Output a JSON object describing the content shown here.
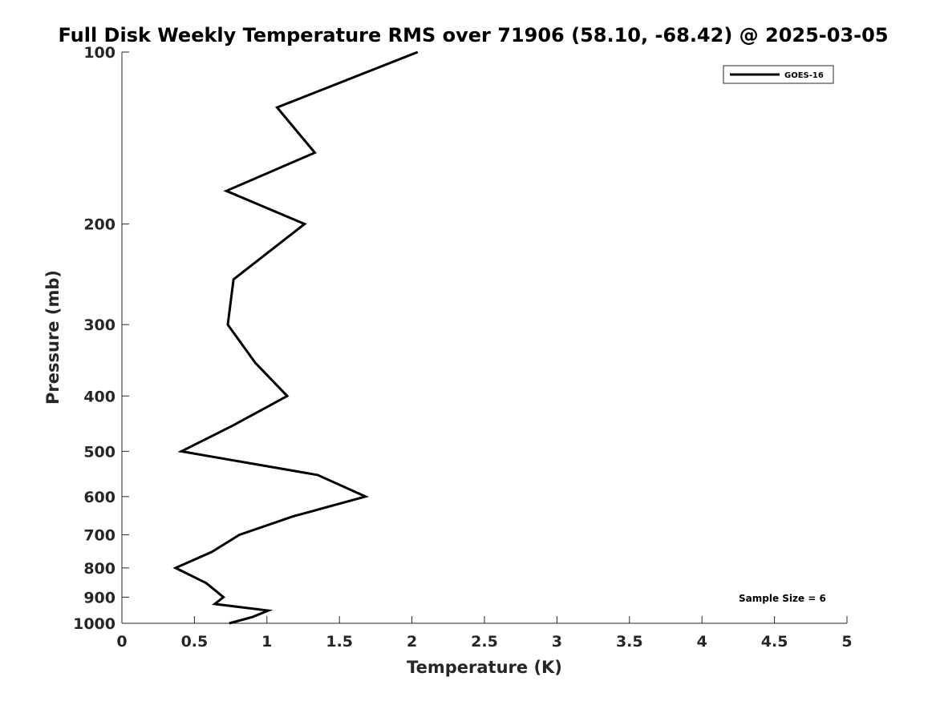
{
  "chart_data": {
    "type": "line",
    "title": "Full Disk Weekly Temperature RMS over 71906 (58.10, -68.42) @ 2025-03-05",
    "xlabel": "Temperature (K)",
    "ylabel": "Pressure (mb)",
    "xlim": [
      0,
      5
    ],
    "ylim": [
      100,
      1000
    ],
    "y_scale": "log",
    "y_direction": "reversed",
    "x_ticks": [
      "0",
      "0.5",
      "1",
      "1.5",
      "2",
      "2.5",
      "3",
      "3.5",
      "4",
      "4.5",
      "5"
    ],
    "y_ticks": [
      "100",
      "200",
      "300",
      "400",
      "500",
      "600",
      "700",
      "800",
      "900",
      "1000"
    ],
    "grid": false,
    "legend": {
      "placement": "top-right",
      "entries": [
        "GOES-16"
      ]
    },
    "annotation": "Sample Size = 6",
    "colors": {
      "series": "#000000",
      "axis": "#262626"
    },
    "series": [
      {
        "name": "GOES-16",
        "points": [
          {
            "temperature": 2.04,
            "pressure": 100
          },
          {
            "temperature": 1.07,
            "pressure": 125
          },
          {
            "temperature": 1.33,
            "pressure": 150
          },
          {
            "temperature": 0.72,
            "pressure": 175
          },
          {
            "temperature": 1.26,
            "pressure": 200
          },
          {
            "temperature": 0.77,
            "pressure": 250
          },
          {
            "temperature": 0.73,
            "pressure": 300
          },
          {
            "temperature": 0.92,
            "pressure": 350
          },
          {
            "temperature": 1.14,
            "pressure": 400
          },
          {
            "temperature": 0.77,
            "pressure": 450
          },
          {
            "temperature": 0.41,
            "pressure": 500
          },
          {
            "temperature": 1.35,
            "pressure": 550
          },
          {
            "temperature": 1.68,
            "pressure": 600
          },
          {
            "temperature": 1.18,
            "pressure": 650
          },
          {
            "temperature": 0.81,
            "pressure": 700
          },
          {
            "temperature": 0.62,
            "pressure": 750
          },
          {
            "temperature": 0.37,
            "pressure": 800
          },
          {
            "temperature": 0.58,
            "pressure": 850
          },
          {
            "temperature": 0.7,
            "pressure": 900
          },
          {
            "temperature": 0.64,
            "pressure": 925
          },
          {
            "temperature": 1.01,
            "pressure": 950
          },
          {
            "temperature": 0.9,
            "pressure": 975
          },
          {
            "temperature": 0.74,
            "pressure": 1000
          }
        ]
      }
    ]
  }
}
